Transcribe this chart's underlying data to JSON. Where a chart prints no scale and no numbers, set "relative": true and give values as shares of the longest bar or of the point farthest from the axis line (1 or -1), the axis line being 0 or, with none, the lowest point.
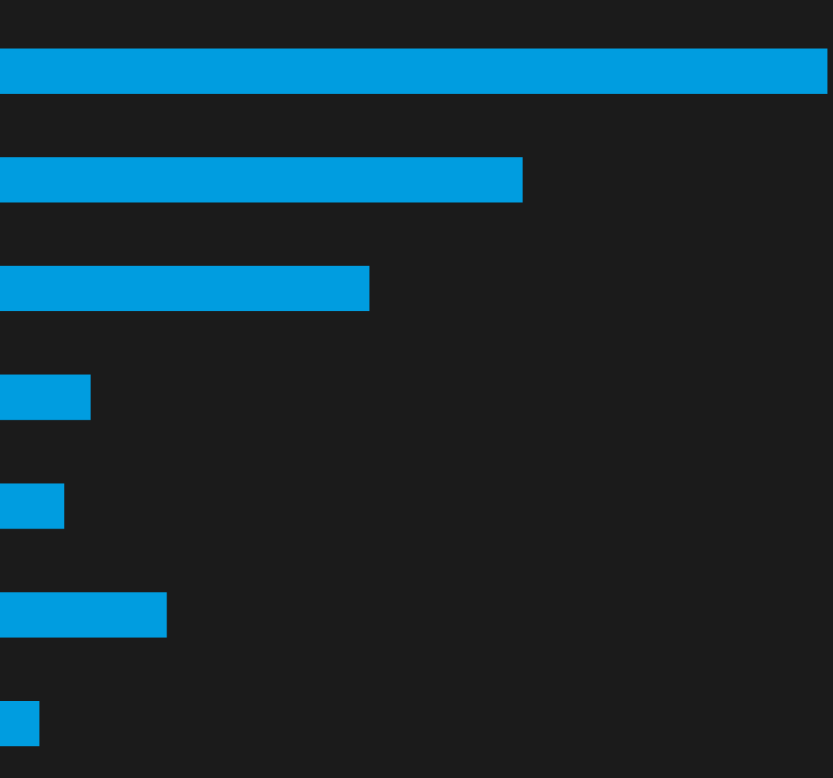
{
  "chart_data": {
    "type": "bar",
    "orientation": "horizontal",
    "relative": true,
    "categories": [
      null,
      null,
      null,
      null,
      null,
      null,
      null
    ],
    "values": [
      1,
      0.631,
      0.446,
      0.109,
      0.077,
      0.201,
      0.047
    ],
    "color": "#009de0",
    "grid": false,
    "legend": false
  }
}
